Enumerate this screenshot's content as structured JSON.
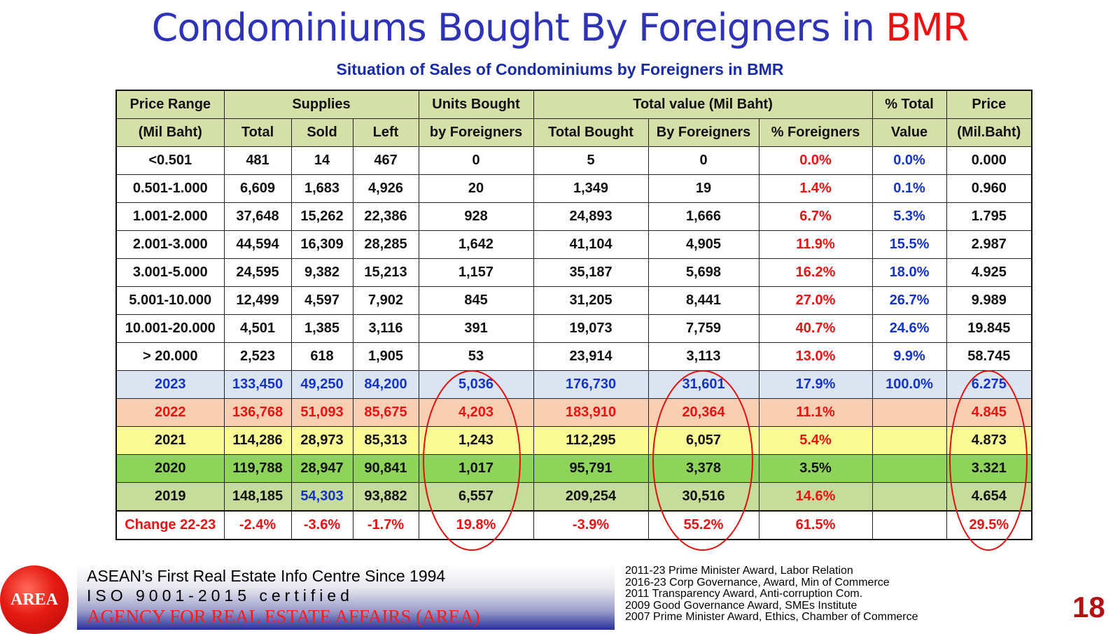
{
  "title": {
    "main": "Condominiums Bought By Foreigners in ",
    "accent": "BMR"
  },
  "subtitle": "Situation of Sales of Condominiums by Foreigners in BMR",
  "table": {
    "header1": {
      "price_range": "Price Range",
      "supplies": "Supplies",
      "units_bought": "Units Bought",
      "total_value": "Total value (Mil Baht)",
      "pct_total": "% Total",
      "price": "Price"
    },
    "header2": {
      "price_range": "(Mil Baht)",
      "total": "Total",
      "sold": "Sold",
      "left": "Left",
      "units_bought": "by Foreigners",
      "total_bought": "Total Bought",
      "by_foreigners": "By Foreigners",
      "pct_foreigners": "% Foreigners",
      "pct_total": "Value",
      "price": "(Mil.Baht)"
    },
    "rows": [
      [
        "<0.501",
        "481",
        "14",
        "467",
        "0",
        "5",
        "0",
        "0.0%",
        "0.0%",
        "0.000"
      ],
      [
        "0.501-1.000",
        "6,609",
        "1,683",
        "4,926",
        "20",
        "1,349",
        "19",
        "1.4%",
        "0.1%",
        "0.960"
      ],
      [
        "1.001-2.000",
        "37,648",
        "15,262",
        "22,386",
        "928",
        "24,893",
        "1,666",
        "6.7%",
        "5.3%",
        "1.795"
      ],
      [
        "2.001-3.000",
        "44,594",
        "16,309",
        "28,285",
        "1,642",
        "41,104",
        "4,905",
        "11.9%",
        "15.5%",
        "2.987"
      ],
      [
        "3.001-5.000",
        "24,595",
        "9,382",
        "15,213",
        "1,157",
        "35,187",
        "5,698",
        "16.2%",
        "18.0%",
        "4.925"
      ],
      [
        "5.001-10.000",
        "12,499",
        "4,597",
        "7,902",
        "845",
        "31,205",
        "8,441",
        "27.0%",
        "26.7%",
        "9.989"
      ],
      [
        "10.001-20.000",
        "4,501",
        "1,385",
        "3,116",
        "391",
        "19,073",
        "7,759",
        "40.7%",
        "24.6%",
        "19.845"
      ],
      [
        "> 20.000",
        "2,523",
        "618",
        "1,905",
        "53",
        "23,914",
        "3,113",
        "13.0%",
        "9.9%",
        "58.745"
      ]
    ],
    "years": [
      [
        "2023",
        "133,450",
        "49,250",
        "84,200",
        "5,036",
        "176,730",
        "31,601",
        "17.9%",
        "100.0%",
        "6.275"
      ],
      [
        "2022",
        "136,768",
        "51,093",
        "85,675",
        "4,203",
        "183,910",
        "20,364",
        "11.1%",
        "",
        "4.845"
      ],
      [
        "2021",
        "114,286",
        "28,973",
        "85,313",
        "1,243",
        "112,295",
        "6,057",
        "5.4%",
        "",
        "4.873"
      ],
      [
        "2020",
        "119,788",
        "28,947",
        "90,841",
        "1,017",
        "95,791",
        "3,378",
        "3.5%",
        "",
        "3.321"
      ],
      [
        "2019",
        "148,185",
        "54,303",
        "93,882",
        "6,557",
        "209,254",
        "30,516",
        "14.6%",
        "",
        "4.654"
      ]
    ],
    "change": [
      "Change 22-23",
      "-2.4%",
      "-3.6%",
      "-1.7%",
      "19.8%",
      "-3.9%",
      "55.2%",
      "61.5%",
      "",
      "29.5%"
    ]
  },
  "footer": {
    "logo_text": "AREA",
    "banner_line1": "ASEAN’s First Real Estate Info Centre Since 1994",
    "banner_line2": "ISO 9001-2015 certified",
    "banner_line3": "AGENCY FOR REAL ESTATE AFFAIRS (AREA)",
    "awards": [
      "2011-23 Prime Minister Award, Labor Relation",
      "2016-23 Corp Governance, Award, Min of Commerce",
      "2011 Transparency Award, Anti-corruption Com.",
      "2009 Good Governance Award, SMEs Institute",
      "2007 Prime Minister Award, Ethics, Chamber of Commerce"
    ],
    "page_number": "18"
  },
  "colors": {
    "title_blue": "#2e33b8",
    "accent_red": "#ee1111",
    "header_green": "#d4e0a8",
    "row_2023": "#dbe5f1",
    "row_2022": "#f9cfb4",
    "row_2021": "#fbfb96",
    "row_2020": "#8fd45a",
    "row_2019": "#c6dc9a"
  }
}
